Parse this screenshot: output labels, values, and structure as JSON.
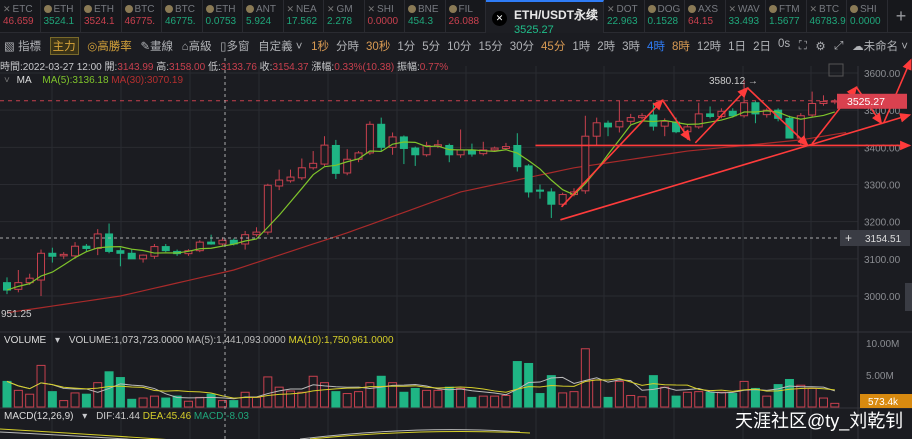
{
  "tickers": [
    {
      "name": "ETC",
      "value": "46.659",
      "dir": "up",
      "icon": "x"
    },
    {
      "name": "ETH",
      "value": "3524.1",
      "dir": "dn",
      "icon": "coin"
    },
    {
      "name": "ETH",
      "value": "3524.1",
      "dir": "up",
      "icon": "coin"
    },
    {
      "name": "BTC",
      "value": "46775.",
      "dir": "up",
      "icon": "coin"
    },
    {
      "name": "BTC",
      "value": "46775.",
      "dir": "dn",
      "icon": "coin"
    },
    {
      "name": "ETH",
      "value": "0.0753",
      "dir": "dn",
      "icon": "coin"
    },
    {
      "name": "ANT",
      "value": "5.924",
      "dir": "dn",
      "icon": "coin"
    },
    {
      "name": "NEA",
      "value": "17.562",
      "dir": "dn",
      "icon": "x"
    },
    {
      "name": "GM",
      "value": "2.278",
      "dir": "dn",
      "icon": "x"
    },
    {
      "name": "SHI",
      "value": "0.0000",
      "dir": "up",
      "icon": "x"
    },
    {
      "name": "BNE",
      "value": "454.3",
      "dir": "dn",
      "icon": "coin"
    },
    {
      "name": "FIL",
      "value": "26.088",
      "dir": "up",
      "icon": "coin"
    },
    {
      "name": "ETH/USDT永续",
      "value": "3525.27",
      "active": true
    },
    {
      "name": "DOT",
      "value": "22.963",
      "dir": "dn",
      "icon": "x"
    },
    {
      "name": "DOG",
      "value": "0.1528",
      "dir": "dn",
      "icon": "coin"
    },
    {
      "name": "AXS",
      "value": "64.15",
      "dir": "up",
      "icon": "coin"
    },
    {
      "name": "WAV",
      "value": "33.493",
      "dir": "dn",
      "icon": "x"
    },
    {
      "name": "FTM",
      "value": "1.5677",
      "dir": "dn",
      "icon": "coin"
    },
    {
      "name": "BTC",
      "value": "46783.9",
      "dir": "dn",
      "icon": "x"
    },
    {
      "name": "SHI",
      "value": "0.0000",
      "dir": "dn",
      "icon": "coin"
    }
  ],
  "toolbar": {
    "indicator": "指標",
    "main": "主力",
    "winrate": "高勝率",
    "draw": "畫線",
    "advanced": "高級",
    "multiwin": "多窗",
    "custom": "自定義 ˅",
    "intervals": [
      {
        "l": "1秒",
        "c": "or"
      },
      {
        "l": "分時"
      },
      {
        "l": "30秒",
        "c": "or"
      },
      {
        "l": "1分"
      },
      {
        "l": "5分"
      },
      {
        "l": "10分"
      },
      {
        "l": "15分"
      },
      {
        "l": "30分"
      },
      {
        "l": "45分",
        "c": "or"
      },
      {
        "l": "1時"
      },
      {
        "l": "2時"
      },
      {
        "l": "3時"
      },
      {
        "l": "4時",
        "c": "bl"
      },
      {
        "l": "8時",
        "c": "or"
      },
      {
        "l": "12時"
      },
      {
        "l": "1日"
      },
      {
        "l": "2日"
      },
      {
        "l": "0s"
      }
    ],
    "layout_name": "未命名 ˅"
  },
  "info": {
    "time_label": "時間:",
    "time": "2022-03-27 12:00",
    "open_label": " 開:",
    "open": "3143.99",
    "high_label": " 高:",
    "high": "3158.00",
    "low_label": " 低:",
    "low": "3133.76",
    "close_label": " 收:",
    "close": "3154.37",
    "chg_label": " 漲幅:",
    "chg": "0.33%(10.38)",
    "amp_label": " 振幅:",
    "amp": "0.77%"
  },
  "ma_legend": {
    "label": "MA",
    "ma5": "MA(5):3136.18",
    "ma30": "MA(30):3070.19",
    "ma5_color": "#7fc42b",
    "ma30_color": "#b52f2f"
  },
  "volume_legend": {
    "label": "VOLUME",
    "vol": "VOLUME:1,073,723.0000",
    "ma5": "MA(5):1,441,093.0000",
    "ma10": "MA(10):1,750,961.0000"
  },
  "macd_legend": {
    "label": "MACD(12,26,9)",
    "dif": "DIF:41.44",
    "dea": "DEA:45.46",
    "macd": "MACD:-8.03"
  },
  "watermark": "天涯社区@ty_刘乾钊",
  "chart_data": {
    "type": "candlestick",
    "colors": {
      "up": "#c8404e",
      "down": "#1fb584",
      "drawing": "#ff3b3b"
    },
    "y_ticks": [
      "3600.00",
      "3500.00",
      "3400.00",
      "3300.00",
      "3200.00",
      "3100.00",
      "3000.00"
    ],
    "ylim": [
      2850,
      3640
    ],
    "last_price": "3525.27",
    "crosshair_price": "3154.51",
    "max_label": "3580.12 →",
    "min_label": "951.25",
    "ohlc": [
      [
        3036,
        3050,
        3005,
        3016
      ],
      [
        3018,
        3070,
        3010,
        3036
      ],
      [
        3036,
        3060,
        3030,
        3048
      ],
      [
        3043,
        3125,
        3000,
        3115
      ],
      [
        3115,
        3130,
        3090,
        3107
      ],
      [
        3108,
        3118,
        3100,
        3112
      ],
      [
        3108,
        3145,
        3100,
        3134
      ],
      [
        3134,
        3140,
        3120,
        3128
      ],
      [
        3128,
        3180,
        3110,
        3167
      ],
      [
        3167,
        3195,
        3115,
        3120
      ],
      [
        3122,
        3130,
        3080,
        3115
      ],
      [
        3115,
        3125,
        3105,
        3100
      ],
      [
        3100,
        3112,
        3090,
        3110
      ],
      [
        3107,
        3140,
        3100,
        3133
      ],
      [
        3133,
        3140,
        3118,
        3122
      ],
      [
        3120,
        3125,
        3108,
        3114
      ],
      [
        3114,
        3126,
        3108,
        3122
      ],
      [
        3122,
        3150,
        3118,
        3145
      ],
      [
        3145,
        3165,
        3138,
        3140
      ],
      [
        3140,
        3158,
        3134,
        3150
      ],
      [
        3150,
        3155,
        3136,
        3140
      ],
      [
        3140,
        3175,
        3125,
        3165
      ],
      [
        3165,
        3185,
        3160,
        3172
      ],
      [
        3172,
        3302,
        3165,
        3298
      ],
      [
        3296,
        3340,
        3285,
        3312
      ],
      [
        3310,
        3340,
        3305,
        3320
      ],
      [
        3318,
        3370,
        3312,
        3345
      ],
      [
        3345,
        3390,
        3340,
        3357
      ],
      [
        3355,
        3430,
        3350,
        3406
      ],
      [
        3405,
        3420,
        3315,
        3330
      ],
      [
        3331,
        3395,
        3325,
        3368
      ],
      [
        3368,
        3390,
        3360,
        3385
      ],
      [
        3385,
        3470,
        3380,
        3462
      ],
      [
        3462,
        3480,
        3390,
        3400
      ],
      [
        3400,
        3440,
        3380,
        3428
      ],
      [
        3428,
        3432,
        3355,
        3397
      ],
      [
        3398,
        3402,
        3350,
        3380
      ],
      [
        3380,
        3415,
        3375,
        3405
      ],
      [
        3403,
        3420,
        3398,
        3407
      ],
      [
        3405,
        3410,
        3360,
        3380
      ],
      [
        3380,
        3448,
        3372,
        3393
      ],
      [
        3392,
        3410,
        3375,
        3382
      ],
      [
        3383,
        3415,
        3378,
        3393
      ],
      [
        3393,
        3402,
        3388,
        3398
      ],
      [
        3397,
        3412,
        3392,
        3402
      ],
      [
        3405,
        3438,
        3335,
        3348
      ],
      [
        3350,
        3355,
        3265,
        3280
      ],
      [
        3285,
        3300,
        3262,
        3282
      ],
      [
        3280,
        3290,
        3210,
        3247
      ],
      [
        3247,
        3278,
        3240,
        3273
      ],
      [
        3273,
        3290,
        3268,
        3280
      ],
      [
        3283,
        3485,
        3275,
        3430
      ],
      [
        3430,
        3480,
        3405,
        3466
      ],
      [
        3465,
        3472,
        3430,
        3455
      ],
      [
        3455,
        3525,
        3440,
        3470
      ],
      [
        3470,
        3490,
        3462,
        3480
      ],
      [
        3480,
        3492,
        3475,
        3485
      ],
      [
        3487,
        3520,
        3445,
        3457
      ],
      [
        3457,
        3478,
        3430,
        3470
      ],
      [
        3468,
        3480,
        3438,
        3442
      ],
      [
        3442,
        3462,
        3420,
        3455
      ],
      [
        3455,
        3520,
        3450,
        3490
      ],
      [
        3490,
        3510,
        3478,
        3483
      ],
      [
        3483,
        3505,
        3478,
        3497
      ],
      [
        3497,
        3505,
        3480,
        3485
      ],
      [
        3485,
        3580,
        3480,
        3520
      ],
      [
        3520,
        3525,
        3465,
        3490
      ],
      [
        3488,
        3505,
        3480,
        3500
      ],
      [
        3500,
        3505,
        3470,
        3478
      ],
      [
        3478,
        3485,
        3425,
        3425
      ],
      [
        3425,
        3492,
        3405,
        3485
      ],
      [
        3487,
        3550,
        3482,
        3518
      ],
      [
        3518,
        3540,
        3512,
        3523
      ],
      [
        3522,
        3530,
        3516,
        3525
      ]
    ],
    "ma30_anchors": [
      [
        0,
        2955
      ],
      [
        10,
        3000
      ],
      [
        20,
        3070
      ],
      [
        30,
        3170
      ],
      [
        40,
        3280
      ],
      [
        50,
        3345
      ],
      [
        60,
        3390
      ],
      [
        70,
        3420
      ],
      [
        74,
        3440
      ]
    ],
    "volume_millions": [
      4.0,
      2.6,
      2.0,
      6.5,
      2.4,
      1.0,
      2.2,
      2.0,
      3.8,
      5.5,
      4.6,
      1.2,
      1.4,
      1.7,
      1.4,
      1.7,
      0.9,
      1.5,
      2.0,
      1.0,
      1.0,
      2.3,
      1.5,
      4.7,
      3.1,
      2.5,
      2.3,
      4.8,
      3.8,
      2.4,
      2.1,
      2.4,
      3.8,
      4.8,
      3.8,
      2.3,
      2.9,
      2.6,
      2.6,
      3.1,
      2.9,
      1.5,
      1.7,
      1.7,
      1.8,
      7.1,
      6.8,
      2.1,
      4.9,
      2.2,
      2.4,
      9.1,
      4.2,
      1.5,
      4.0,
      1.8,
      1.6,
      4.9,
      3.1,
      1.7,
      2.3,
      2.4,
      2.3,
      2.3,
      2.1,
      4.0,
      2.9,
      1.7,
      3.5,
      4.3,
      3.4,
      2.9,
      1.4,
      0.57
    ],
    "volume_ticks": [
      "10.00M",
      "5.00M"
    ],
    "volume_last": "573.4k",
    "drawings": [
      [
        [
          46.6,
          3405
        ],
        [
          79.6,
          3405
        ]
      ],
      [
        [
          48.8,
          3205
        ],
        [
          79.6,
          3487
        ]
      ],
      [
        [
          48.9,
          3240
        ],
        [
          57.8,
          3527
        ]
      ],
      [
        [
          57.8,
          3527
        ],
        [
          60.2,
          3420
        ]
      ],
      [
        [
          60.7,
          3412
        ],
        [
          65.3,
          3560
        ]
      ],
      [
        [
          65.3,
          3560
        ],
        [
          70.6,
          3406
        ]
      ],
      [
        [
          71,
          3410
        ],
        [
          74.9,
          3562
        ]
      ],
      [
        [
          74.9,
          3562
        ],
        [
          77.1,
          3465
        ]
      ],
      [
        [
          77.3,
          3465
        ],
        [
          79.7,
          3635
        ]
      ]
    ]
  }
}
